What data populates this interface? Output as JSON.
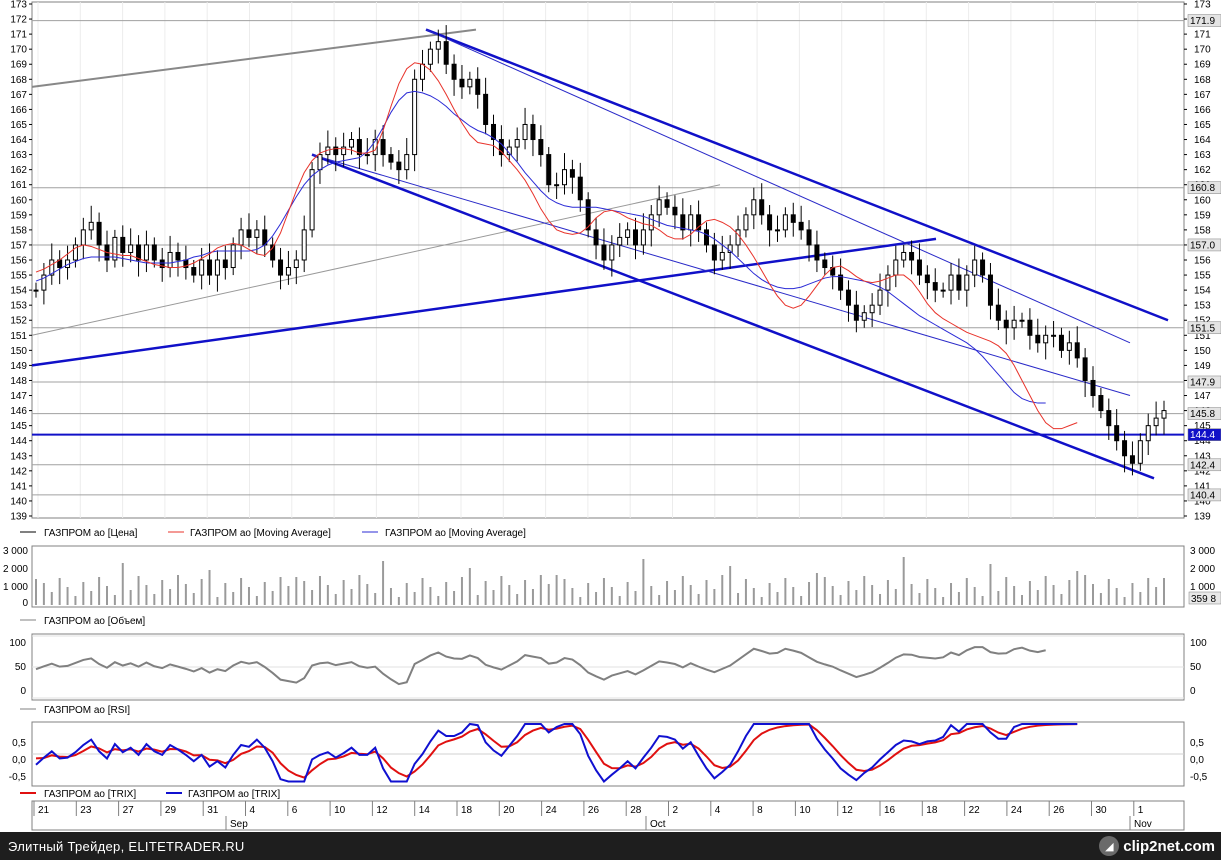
{
  "colors": {
    "price_bar": "#000000",
    "ma_fast": "#e8332b",
    "ma_slow": "#2b2bd6",
    "trend_line": "#1010c8",
    "thin_trend": "#2a2ac8",
    "horizontal_level": "#1010c8",
    "gray_line": "#888888",
    "volume": "#9a9a9a",
    "rsi": "#808080",
    "trix_red": "#e01010",
    "trix_blue": "#1010d0"
  },
  "footer": {
    "left_text": "Элитный Трейдер, ELITETRADER.RU",
    "logo_text": "clip2net.com",
    "logo_icon": "clip2net-logo-icon"
  },
  "chart_data": [
    {
      "type": "candlestick",
      "title": "",
      "ylim": [
        139,
        173
      ],
      "legend": [
        {
          "name": "ГАЗПРОМ ао [Цена]"
        },
        {
          "name": "ГАЗПРОМ ао [Moving Average]"
        },
        {
          "name": "ГАЗПРОМ ао [Moving Average]"
        }
      ],
      "y_ticks_left": [
        139,
        140,
        141,
        142,
        143,
        144,
        145,
        146,
        147,
        148,
        149,
        150,
        151,
        152,
        153,
        154,
        155,
        156,
        157,
        158,
        159,
        160,
        161,
        162,
        163,
        164,
        165,
        166,
        167,
        168,
        169,
        170,
        171,
        172,
        173
      ],
      "y_ticks_right": [
        139,
        140,
        141,
        142,
        143,
        144,
        145,
        146,
        147,
        148,
        149,
        150,
        151,
        152,
        153,
        154,
        155,
        156,
        157,
        158,
        159,
        160,
        161,
        162,
        163,
        164,
        165,
        166,
        167,
        168,
        169,
        170,
        171,
        172,
        173
      ],
      "horizontal_levels": [
        {
          "value": 171.9,
          "label": "171.9"
        },
        {
          "value": 160.8,
          "label": "160.8"
        },
        {
          "value": 157.0,
          "label": "157.0"
        },
        {
          "value": 151.5,
          "label": "151.5"
        },
        {
          "value": 147.9,
          "label": "147.9"
        },
        {
          "value": 145.8,
          "label": "145.8"
        },
        {
          "value": 144.4,
          "label": "144.4"
        },
        {
          "value": 142.4,
          "label": "142.4"
        },
        {
          "value": 140.4,
          "label": "140.4"
        }
      ],
      "current_level": {
        "value": 144.4,
        "label": "144.4"
      },
      "close_series": [
        154,
        155,
        156,
        155.5,
        156,
        157,
        158,
        158.5,
        157,
        156,
        157.5,
        156.5,
        157,
        156,
        157,
        156,
        155.5,
        156.5,
        156,
        155.5,
        155,
        156,
        155,
        156,
        155.5,
        157,
        158,
        157.5,
        158,
        157,
        156,
        155,
        155.5,
        156,
        158,
        162,
        163,
        163.5,
        163,
        163.5,
        164,
        163,
        163,
        164,
        163,
        162.5,
        162,
        163,
        168,
        169,
        170,
        170.5,
        169,
        168,
        167.5,
        168,
        167,
        165,
        164,
        163,
        163.5,
        164,
        165,
        164,
        163,
        161,
        161,
        162,
        161.5,
        160,
        158,
        157,
        156,
        157,
        157.5,
        158,
        157,
        158,
        159,
        160,
        159.5,
        159,
        158,
        159,
        158,
        157,
        156,
        156.5,
        157,
        158,
        159,
        160,
        159,
        158,
        158,
        159,
        158.5,
        158,
        157,
        156,
        155.5,
        155,
        154,
        153,
        152,
        152.5,
        153,
        154,
        155,
        156,
        156.5,
        156,
        155,
        154.5,
        154,
        154,
        155,
        154,
        155,
        156,
        155,
        153,
        152,
        151.5,
        152,
        152,
        151,
        150.5,
        151,
        151,
        150,
        150.5,
        149.5,
        148,
        147,
        146,
        145,
        144,
        143,
        142.5,
        144,
        145,
        145.5,
        146
      ],
      "ma_fast_series": [
        155.2,
        155.4,
        155.7,
        156.0,
        156.4,
        156.8,
        157.0,
        156.9,
        156.7,
        156.5,
        156.4,
        156.3,
        156.3,
        156.1,
        155.9,
        155.7,
        155.6,
        155.5,
        155.5,
        155.6,
        155.8,
        156.1,
        156.4,
        156.8,
        157.0,
        157.1,
        157.0,
        156.7,
        156.4,
        156.3,
        156.8,
        157.8,
        159.2,
        160.6,
        161.8,
        162.6,
        163.1,
        163.3,
        163.4,
        163.4,
        163.3,
        163.1,
        163.1,
        163.3,
        164.6,
        166.2,
        167.7,
        168.7,
        169.1,
        169.0,
        168.6,
        167.9,
        167.0,
        166.0,
        165.1,
        164.3,
        163.8,
        163.7,
        163.6,
        163.2,
        162.6,
        162.0,
        161.3,
        160.4,
        159.4,
        158.6,
        158.0,
        157.8,
        157.7,
        157.8,
        158.2,
        158.8,
        159.2,
        159.3,
        159.1,
        158.8,
        158.6,
        158.4,
        158.3,
        158.0,
        157.6,
        157.4,
        157.4,
        157.7,
        158.2,
        158.6,
        158.7,
        158.5,
        158.2,
        157.7,
        157.0,
        156.2,
        155.3,
        154.4,
        153.6,
        153.0,
        152.8,
        153.0,
        153.6,
        154.3,
        155.0,
        155.5,
        155.6,
        155.3,
        154.9,
        154.6,
        154.5,
        154.6,
        154.8,
        155.0,
        155.0,
        154.6,
        153.9,
        153.1,
        152.5,
        152.1,
        151.8,
        151.5,
        151.2,
        151.0,
        150.8,
        150.6,
        150.3,
        149.8,
        149.0,
        148.0,
        147.0,
        146.0,
        145.2,
        144.8,
        144.8,
        145.0,
        145.2
      ],
      "ma_slow_series": [
        154.6,
        154.8,
        155.1,
        155.4,
        155.7,
        155.9,
        156.1,
        156.2,
        156.2,
        156.2,
        156.2,
        156.1,
        156.0,
        155.9,
        155.8,
        155.8,
        155.8,
        155.8,
        155.9,
        156.0,
        156.2,
        156.3,
        156.5,
        156.6,
        156.6,
        156.6,
        156.6,
        156.6,
        156.7,
        157.0,
        157.6,
        158.4,
        159.3,
        160.2,
        161.0,
        161.6,
        162.0,
        162.3,
        162.5,
        162.6,
        162.7,
        162.8,
        163.2,
        163.9,
        164.8,
        165.8,
        166.6,
        167.1,
        167.2,
        167.1,
        166.9,
        166.6,
        166.2,
        165.7,
        165.3,
        164.9,
        164.6,
        164.4,
        164.1,
        163.7,
        163.1,
        162.5,
        161.8,
        161.2,
        160.6,
        160.1,
        159.8,
        159.6,
        159.5,
        159.5,
        159.5,
        159.5,
        159.4,
        159.3,
        159.2,
        159.1,
        159.0,
        158.9,
        158.7,
        158.5,
        158.3,
        158.2,
        158.1,
        158.0,
        157.9,
        157.7,
        157.4,
        157.0,
        156.6,
        156.1,
        155.6,
        155.1,
        154.7,
        154.4,
        154.2,
        154.1,
        154.1,
        154.2,
        154.4,
        154.6,
        154.8,
        154.9,
        154.9,
        154.8,
        154.7,
        154.6,
        154.4,
        154.2,
        153.9,
        153.5,
        153.1,
        152.7,
        152.3,
        152.0,
        151.7,
        151.4,
        151.1,
        150.8,
        150.5,
        150.1,
        149.6,
        149.0,
        148.4,
        147.8,
        147.2,
        146.8,
        146.6,
        146.5,
        146.5
      ]
    },
    {
      "type": "bar",
      "title": "",
      "legend": [
        {
          "name": "ГАЗПРОМ ао [Объем]"
        }
      ],
      "y_ticks_right": [
        "3 000",
        "2 000",
        "1 000",
        "359 8"
      ],
      "y_ticks_left": [
        "3 000",
        "2 000",
        "1 000",
        "0"
      ]
    },
    {
      "type": "line",
      "title": "",
      "legend": [
        {
          "name": "ГАЗПРОМ ао [RSI]"
        }
      ],
      "ylim": [
        0,
        100
      ],
      "y_ticks": [
        "100",
        "50",
        "0"
      ],
      "series": [
        {
          "name": "ГАЗПРОМ ао [RSI]"
        }
      ]
    },
    {
      "type": "line",
      "title": "",
      "legend": [
        {
          "name": "ГАЗПРОМ ао [TRIX]"
        },
        {
          "name": "ГАЗПРОМ ао [TRIX]"
        }
      ],
      "ylim": [
        -0.5,
        0.5
      ],
      "y_ticks": [
        "0,5",
        "0,0",
        "-0,5"
      ]
    }
  ],
  "x_axis": {
    "day_labels": [
      "21",
      "23",
      "27",
      "29",
      "31",
      "4",
      "6",
      "10",
      "12",
      "14",
      "18",
      "20",
      "24",
      "26",
      "28",
      "2",
      "4",
      "8",
      "10",
      "12",
      "16",
      "18",
      "22",
      "24",
      "26",
      "30",
      "1"
    ],
    "month_labels": [
      "Sep",
      "Oct",
      "Nov"
    ]
  }
}
